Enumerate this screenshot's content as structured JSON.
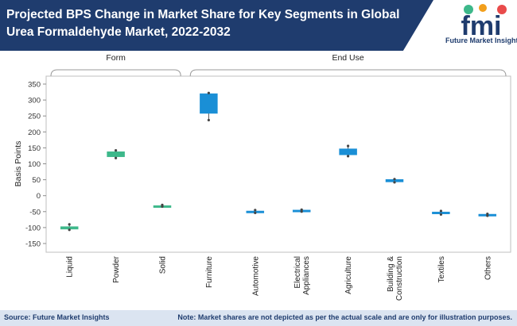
{
  "header": {
    "title": "Projected BPS Change in Market Share for Key Segments in Global Urea Formaldehyde Market, 2022-2032",
    "logo_text": "fmi",
    "logo_subtitle": "Future Market Insights"
  },
  "footer": {
    "source": "Source: Future Market Insights",
    "note": "Note: Market shares are not depicted as per the actual scale and are only for illustration purposes."
  },
  "colors": {
    "navy": "#1f3c6e",
    "green": "#3db88a",
    "blue": "#1a8fd6",
    "footer_bg": "#dbe4f1"
  },
  "chart_data": {
    "type": "box",
    "ylabel": "Basis Points",
    "ylim": [
      -150,
      350
    ],
    "yticks": [
      -150,
      -100,
      -50,
      0,
      50,
      100,
      150,
      200,
      250,
      300,
      350
    ],
    "groups": [
      {
        "label": "Form",
        "start": 0,
        "end": 2
      },
      {
        "label": "End Use",
        "start": 3,
        "end": 9
      }
    ],
    "categories": [
      "Liquid",
      "Powder",
      "Solid",
      "Furniture",
      "Automotive",
      "Electrical Appliances",
      "Agriculture",
      "Building & Construction",
      "Textiles",
      "Others"
    ],
    "boxes": [
      {
        "category": "Liquid",
        "min": -107,
        "q1": -105,
        "q3": -97,
        "max": -90,
        "color": "green"
      },
      {
        "category": "Powder",
        "min": 118,
        "q1": 122,
        "q3": 138,
        "max": 142,
        "color": "green"
      },
      {
        "category": "Solid",
        "min": -34,
        "q1": -33,
        "q3": -31,
        "max": -29,
        "color": "green"
      },
      {
        "category": "Furniture",
        "min": 237,
        "q1": 258,
        "q3": 320,
        "max": 322,
        "color": "blue"
      },
      {
        "category": "Automotive",
        "min": -54,
        "q1": -51,
        "q3": -48,
        "max": -45,
        "color": "blue"
      },
      {
        "category": "Electrical Appliances",
        "min": -50,
        "q1": -48,
        "q3": -45,
        "max": -44,
        "color": "blue"
      },
      {
        "category": "Agriculture",
        "min": 124,
        "q1": 128,
        "q3": 147,
        "max": 156,
        "color": "blue"
      },
      {
        "category": "Building & Construction",
        "min": 42,
        "q1": 43,
        "q3": 51,
        "max": 52,
        "color": "blue"
      },
      {
        "category": "Textiles",
        "min": -59,
        "q1": -57,
        "q3": -51,
        "max": -48,
        "color": "blue"
      },
      {
        "category": "Others",
        "min": -63,
        "q1": -62,
        "q3": -58,
        "max": -57,
        "color": "blue"
      }
    ]
  }
}
